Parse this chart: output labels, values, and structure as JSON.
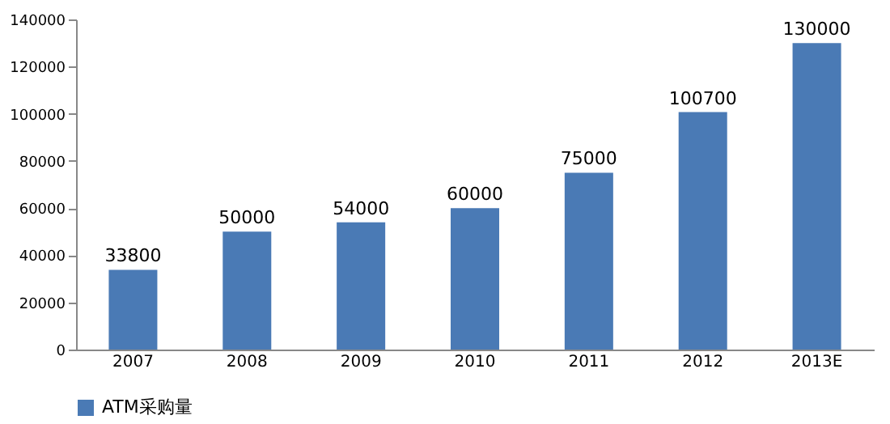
{
  "chart_data": {
    "type": "bar",
    "categories": [
      "2007",
      "2008",
      "2009",
      "2010",
      "2011",
      "2012",
      "2013E"
    ],
    "series": [
      {
        "name": "ATM采购量",
        "color": "#4a7ab5",
        "values": [
          33800,
          50000,
          54000,
          60000,
          75000,
          100700,
          130000
        ]
      }
    ],
    "ylim": [
      0,
      140000
    ],
    "yticks": [
      0,
      20000,
      40000,
      60000,
      80000,
      100000,
      120000,
      140000
    ],
    "data_labels": true,
    "grid": false,
    "legend": "bottom"
  }
}
